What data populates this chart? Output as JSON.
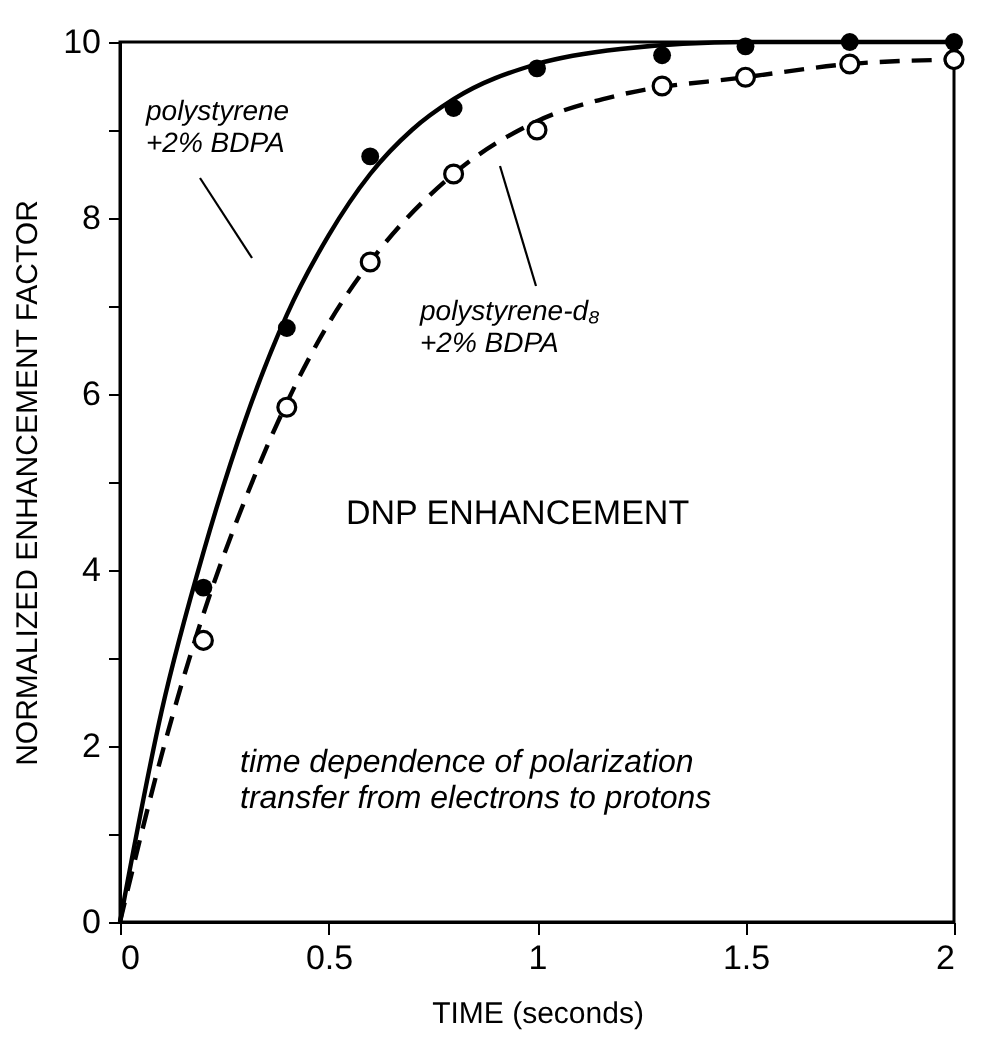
{
  "chart_data": {
    "type": "scatter",
    "xlabel": "TIME (seconds)",
    "ylabel": "NORMALIZED ENHANCEMENT FACTOR",
    "xlim": [
      0,
      2
    ],
    "xticks": [
      0,
      0.5,
      1,
      1.5,
      2
    ],
    "ylim": [
      0,
      10
    ],
    "yticks": [
      0,
      {
        "value": 1,
        "label": null
      },
      2,
      {
        "value": 3,
        "label": null
      },
      4,
      {
        "value": 5,
        "label": null
      },
      6,
      {
        "value": 7,
        "label": null
      },
      8,
      {
        "value": 9,
        "label": null
      },
      10
    ],
    "grid": false,
    "series": [
      {
        "type": "line",
        "line_style": "solid",
        "marker": "none",
        "color": "#000000",
        "x": [
          0,
          0.1,
          0.2,
          0.3,
          0.4,
          0.5,
          0.6,
          0.7,
          0.8,
          1.0,
          1.2,
          1.5,
          2.0
        ],
        "values": [
          0,
          2.4,
          4.2,
          5.7,
          6.9,
          7.8,
          8.5,
          9.0,
          9.35,
          9.75,
          9.92,
          10,
          10
        ]
      },
      {
        "type": "line",
        "line_style": "dashed",
        "marker": "none",
        "color": "#000000",
        "x": [
          0,
          0.1,
          0.2,
          0.3,
          0.4,
          0.5,
          0.6,
          0.8,
          1.0,
          1.2,
          1.5,
          1.75,
          2.0
        ],
        "values": [
          0,
          1.9,
          3.5,
          4.8,
          5.9,
          6.8,
          7.5,
          8.5,
          9.1,
          9.4,
          9.6,
          9.75,
          9.8
        ]
      },
      {
        "marker": "circle",
        "color": "#000000",
        "x": [
          0.2,
          0.4,
          0.6,
          0.8,
          1.0,
          1.3,
          1.5,
          1.75,
          2.0
        ],
        "values": [
          3.8,
          6.75,
          8.7,
          9.25,
          9.7,
          9.85,
          9.95,
          10.0,
          10.0
        ]
      },
      {
        "marker": "circle",
        "color": "#000000",
        "x": [
          0.2,
          0.4,
          0.6,
          0.8,
          1.0,
          1.3,
          1.5,
          1.75,
          2.0
        ],
        "values": [
          3.2,
          5.85,
          7.5,
          8.5,
          9.0,
          9.5,
          9.6,
          9.75,
          9.8
        ]
      }
    ],
    "annotations": [
      "polystyrene\n+2% BDPA",
      "polystyrene-d₈\n+2% BDPA",
      "DNP ENHANCEMENT",
      "time dependence of polarization\ntransfer from electrons to protons"
    ]
  }
}
